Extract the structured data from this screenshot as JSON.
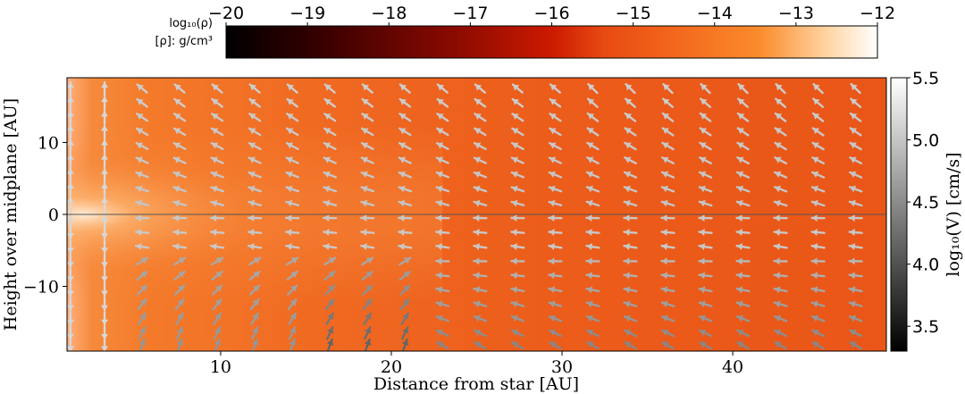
{
  "chart_data": {
    "type": "heatmap",
    "title": "",
    "xlabel": "Distance from star  [AU]",
    "ylabel": "Height over midplane [AU]",
    "xlim": [
      1,
      49
    ],
    "ylim": [
      -19,
      19
    ],
    "x_ticks": [
      10,
      20,
      30,
      40
    ],
    "y_ticks": [
      -10,
      0,
      10
    ],
    "density_colorbar": {
      "label": "log₁₀(ρ)",
      "unit_label": "[ρ]: g/cm³",
      "range": [
        -20,
        -12
      ],
      "ticks": [
        -20,
        -19,
        -18,
        -17,
        -16,
        -15,
        -14,
        -13,
        -12
      ],
      "tick_labels": [
        "−20",
        "−19",
        "−18",
        "−17",
        "−16",
        "−15",
        "−14",
        "−13",
        "−12"
      ],
      "colormap": [
        "#000000",
        "#3a0000",
        "#8a0a00",
        "#cc1a00",
        "#e84a12",
        "#f46a1e",
        "#fb8c2c",
        "#ffd3a0",
        "#ffffff"
      ]
    },
    "velocity_colorbar": {
      "label": "log₁₀(V) [cm/s]",
      "range": [
        3.3,
        5.5
      ],
      "ticks": [
        3.5,
        4.0,
        4.5,
        5.0,
        5.5
      ],
      "tick_labels": [
        "3.5",
        "4.0",
        "4.5",
        "5.0",
        "5.5"
      ]
    },
    "quiver": {
      "x_positions_au": [
        1.2,
        3.2,
        5.4,
        7.6,
        9.8,
        12.0,
        14.2,
        16.4,
        18.6,
        20.8,
        23.0,
        25.2,
        27.4,
        29.6,
        31.8,
        34.0,
        36.2,
        38.4,
        40.6,
        42.8,
        45.0,
        47.2
      ],
      "y_positions_au": [
        17.5,
        15.5,
        13.5,
        11.5,
        9.5,
        7.5,
        5.5,
        3.5,
        1.5,
        -0.5,
        -2.5,
        -4.5,
        -6.5,
        -8.5,
        -10.5,
        -12.5,
        -14.5,
        -16.5,
        -18.2
      ],
      "description": "velocity vectors: inward/downward above midplane far out, vertical near inner rim, outward below midplane"
    },
    "midplane_line_y": 0
  }
}
